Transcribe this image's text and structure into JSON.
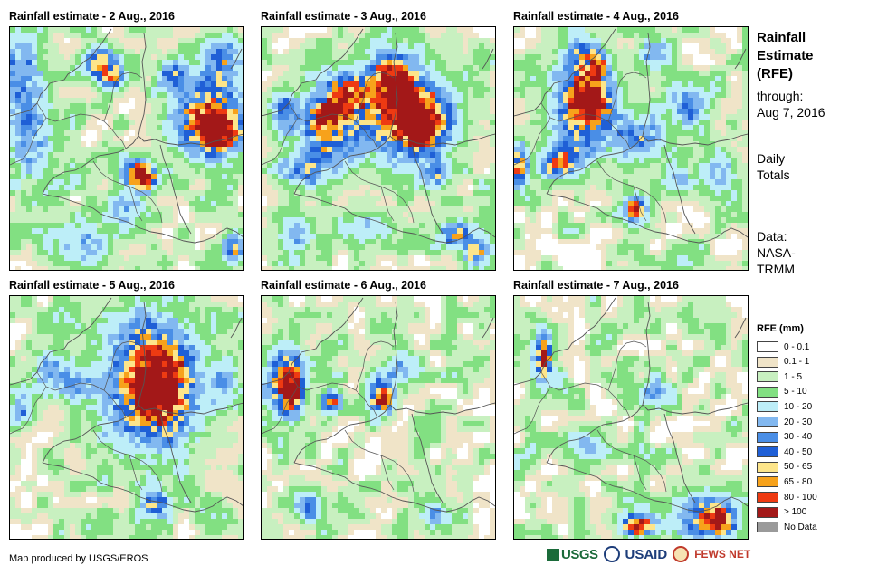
{
  "panels": [
    {
      "title": "Rainfall estimate - 2 Aug., 2016"
    },
    {
      "title": "Rainfall estimate - 3 Aug., 2016"
    },
    {
      "title": "Rainfall estimate - 4 Aug., 2016"
    },
    {
      "title": "Rainfall estimate - 5 Aug., 2016"
    },
    {
      "title": "Rainfall estimate - 6 Aug., 2016"
    },
    {
      "title": "Rainfall estimate - 7 Aug., 2016"
    }
  ],
  "sidebar": {
    "title_line1": "Rainfall",
    "title_line2": "Estimate",
    "title_line3": "(RFE)",
    "through_label": "through:",
    "through_date": "Aug 7, 2016",
    "totals_line1": "Daily",
    "totals_line2": "Totals",
    "data_label": "Data:",
    "source_line1": "NASA-",
    "source_line2": "TRMM"
  },
  "legend": {
    "title": "RFE (mm)",
    "items": [
      {
        "label": "0 - 0.1",
        "color": "#ffffff"
      },
      {
        "label": "0.1 - 1",
        "color": "#f0e4c8"
      },
      {
        "label": "1 - 5",
        "color": "#c8f0c0"
      },
      {
        "label": "5 - 10",
        "color": "#82e082"
      },
      {
        "label": "10 - 20",
        "color": "#bdeef8"
      },
      {
        "label": "20 - 30",
        "color": "#82b8f0"
      },
      {
        "label": "30 - 40",
        "color": "#4a8ee6"
      },
      {
        "label": "40 - 50",
        "color": "#1f5fd6"
      },
      {
        "label": "50 - 65",
        "color": "#fde58a"
      },
      {
        "label": "65 - 80",
        "color": "#f7a21b"
      },
      {
        "label": "80 - 100",
        "color": "#ee3a12"
      },
      {
        "label": "> 100",
        "color": "#a31818"
      },
      {
        "label": "No Data",
        "color": "#9a9a9a"
      }
    ]
  },
  "footer": {
    "credit": "Map produced by USGS/EROS",
    "logo_usgs": "USGS",
    "logo_usaid": "USAID",
    "logo_fews": "FEWS NET"
  },
  "rain_cores": [
    [
      [
        0.05,
        0.22,
        0.09,
        0.18,
        30
      ],
      [
        0.1,
        0.45,
        0.09,
        0.16,
        25
      ],
      [
        0.38,
        0.15,
        0.07,
        0.06,
        55
      ],
      [
        0.44,
        0.2,
        0.05,
        0.05,
        70
      ],
      [
        0.7,
        0.2,
        0.06,
        0.06,
        45
      ],
      [
        0.9,
        0.16,
        0.08,
        0.1,
        50
      ],
      [
        0.86,
        0.38,
        0.14,
        0.13,
        95
      ],
      [
        0.88,
        0.42,
        0.07,
        0.07,
        130
      ],
      [
        0.55,
        0.6,
        0.06,
        0.06,
        80
      ],
      [
        0.58,
        0.62,
        0.04,
        0.04,
        110
      ],
      [
        0.5,
        0.75,
        0.08,
        0.08,
        20
      ],
      [
        0.96,
        0.9,
        0.04,
        0.06,
        55
      ],
      [
        0.3,
        0.88,
        0.12,
        0.08,
        20
      ]
    ],
    [
      [
        0.3,
        0.4,
        0.12,
        0.15,
        65
      ],
      [
        0.37,
        0.28,
        0.08,
        0.08,
        90
      ],
      [
        0.55,
        0.22,
        0.08,
        0.1,
        90
      ],
      [
        0.62,
        0.35,
        0.17,
        0.17,
        95
      ],
      [
        0.68,
        0.4,
        0.08,
        0.08,
        140
      ],
      [
        0.6,
        0.25,
        0.05,
        0.05,
        130
      ],
      [
        0.27,
        0.36,
        0.04,
        0.04,
        130
      ],
      [
        0.1,
        0.35,
        0.06,
        0.08,
        45
      ],
      [
        0.18,
        0.58,
        0.1,
        0.07,
        35
      ],
      [
        0.75,
        0.6,
        0.06,
        0.06,
        30
      ],
      [
        0.83,
        0.85,
        0.06,
        0.05,
        60
      ],
      [
        0.92,
        0.92,
        0.05,
        0.05,
        70
      ],
      [
        0.45,
        0.82,
        0.12,
        0.06,
        20
      ],
      [
        0.15,
        0.85,
        0.08,
        0.06,
        20
      ]
    ],
    [
      [
        0.3,
        0.32,
        0.13,
        0.17,
        65
      ],
      [
        0.32,
        0.3,
        0.07,
        0.09,
        130
      ],
      [
        0.3,
        0.12,
        0.06,
        0.07,
        45
      ],
      [
        0.36,
        0.16,
        0.04,
        0.05,
        70
      ],
      [
        0.2,
        0.55,
        0.08,
        0.06,
        75
      ],
      [
        0.02,
        0.57,
        0.04,
        0.08,
        85
      ],
      [
        0.54,
        0.45,
        0.12,
        0.1,
        30
      ],
      [
        0.52,
        0.75,
        0.06,
        0.06,
        45
      ],
      [
        0.52,
        0.74,
        0.03,
        0.03,
        110
      ],
      [
        0.75,
        0.32,
        0.08,
        0.08,
        35
      ],
      [
        0.88,
        0.6,
        0.07,
        0.09,
        25
      ],
      [
        0.7,
        0.62,
        0.06,
        0.06,
        20
      ],
      [
        0.6,
        0.1,
        0.06,
        0.05,
        30
      ]
    ],
    [
      [
        0.6,
        0.35,
        0.2,
        0.25,
        60
      ],
      [
        0.63,
        0.37,
        0.12,
        0.16,
        120
      ],
      [
        0.18,
        0.32,
        0.07,
        0.08,
        35
      ],
      [
        0.3,
        0.37,
        0.06,
        0.06,
        30
      ],
      [
        0.62,
        0.85,
        0.06,
        0.05,
        60
      ],
      [
        0.92,
        0.36,
        0.06,
        0.08,
        25
      ],
      [
        0.05,
        0.46,
        0.05,
        0.06,
        30
      ]
    ],
    [
      [
        0.1,
        0.35,
        0.07,
        0.13,
        75
      ],
      [
        0.13,
        0.38,
        0.04,
        0.08,
        130
      ],
      [
        0.5,
        0.4,
        0.05,
        0.08,
        55
      ],
      [
        0.53,
        0.42,
        0.03,
        0.04,
        110
      ],
      [
        0.3,
        0.43,
        0.04,
        0.04,
        70
      ],
      [
        0.6,
        0.3,
        0.06,
        0.06,
        30
      ],
      [
        0.2,
        0.85,
        0.06,
        0.06,
        35
      ],
      [
        0.75,
        0.9,
        0.06,
        0.06,
        25
      ]
    ],
    [
      [
        0.12,
        0.25,
        0.04,
        0.1,
        60
      ],
      [
        0.13,
        0.25,
        0.02,
        0.05,
        120
      ],
      [
        0.82,
        0.9,
        0.12,
        0.09,
        55
      ],
      [
        0.88,
        0.92,
        0.06,
        0.05,
        100
      ],
      [
        0.54,
        0.93,
        0.08,
        0.05,
        60
      ],
      [
        0.53,
        0.94,
        0.04,
        0.03,
        95
      ],
      [
        0.6,
        0.4,
        0.06,
        0.06,
        25
      ],
      [
        0.3,
        0.6,
        0.08,
        0.06,
        20
      ]
    ]
  ]
}
